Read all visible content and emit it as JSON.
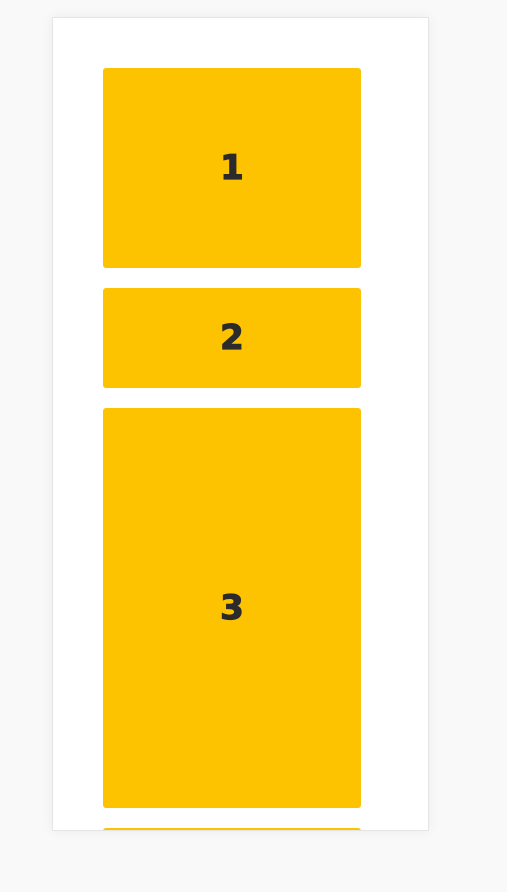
{
  "theme": {
    "card_color": "#fec300",
    "number_color": "#2b2b2b",
    "background": "#f9f9f9",
    "frame_background": "#ffffff"
  },
  "cards": [
    {
      "label": "1"
    },
    {
      "label": "2"
    },
    {
      "label": "3"
    },
    {
      "label": ""
    }
  ]
}
